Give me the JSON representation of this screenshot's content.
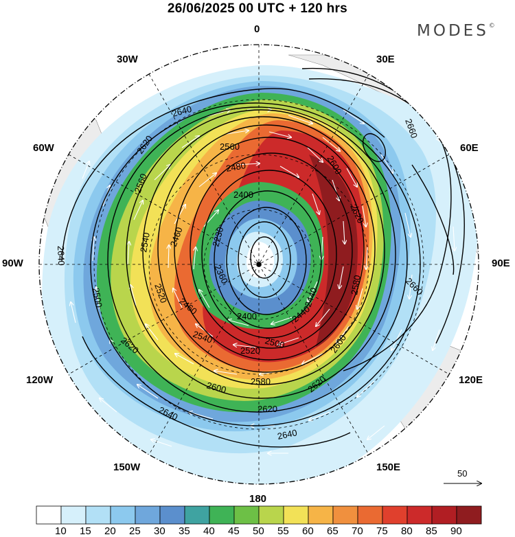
{
  "title": "26/06/2025  00 UTC  + 120 hrs",
  "brand": "MODES",
  "brand_mark": "©",
  "longitude_labels": {
    "n0": "0",
    "e30": "30E",
    "e60": "60E",
    "e90": "90E",
    "e120": "120E",
    "e150": "150E",
    "s180": "180",
    "w150": "150W",
    "w120": "120W",
    "w90": "90W",
    "w60": "60W",
    "w30": "30W"
  },
  "contour_labels": [
    "2640",
    "2620",
    "2580",
    "2560",
    "2480",
    "2400",
    "2460",
    "2230",
    "2540",
    "2500",
    "2360",
    "2520",
    "2640",
    "2620",
    "2600",
    "2580",
    "2620",
    "2640",
    "2440",
    "2560",
    "2640",
    "2660",
    "2660",
    "2600",
    "2500",
    "2620",
    "2600",
    "2540",
    "2520",
    "2440",
    "2400",
    "2460",
    "2620"
  ],
  "vector_reference": "50",
  "colorbar": {
    "colors": [
      "#ffffff",
      "#d6f0fb",
      "#b2e0f6",
      "#8cc9ee",
      "#6fa7dc",
      "#5b8fcd",
      "#3fa3a1",
      "#3fb356",
      "#6dc046",
      "#b9d54c",
      "#f2e157",
      "#f6b447",
      "#f0903e",
      "#ea6a32",
      "#e0402d",
      "#cc2a2a",
      "#b11e23",
      "#8f1c1f"
    ],
    "labels": [
      "10",
      "15",
      "20",
      "25",
      "30",
      "35",
      "40",
      "45",
      "50",
      "55",
      "60",
      "65",
      "70",
      "75",
      "80",
      "85",
      "90"
    ]
  }
}
